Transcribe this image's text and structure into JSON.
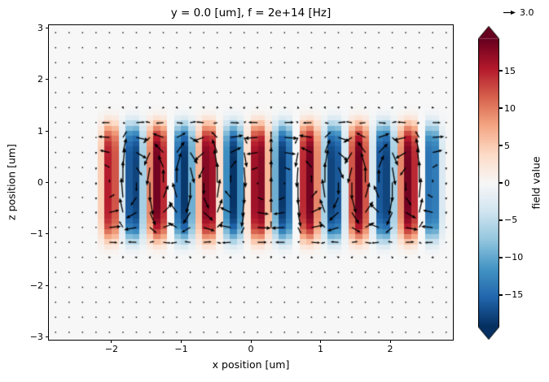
{
  "chart_data": {
    "type": "heatmap",
    "title": "y = 0.0 [um], f = 2e+14 [Hz]",
    "xlabel": "x position [um]",
    "ylabel": "z position [um]",
    "x_range": [
      -2.9,
      2.9
    ],
    "z_range": [
      -3.05,
      3.05
    ],
    "x_ticks": [
      -2,
      -1,
      0,
      1,
      2
    ],
    "z_ticks": [
      -3,
      -2,
      -1,
      0,
      1,
      2,
      3
    ],
    "grid": false,
    "colorbar": {
      "label": "field value",
      "ticks": [
        -15,
        -10,
        -5,
        0,
        5,
        10,
        15
      ],
      "vmin": -19.3,
      "vmax": 19.3,
      "extend": "both",
      "colormap": "RdBu_r",
      "colormap_colors": [
        "#053061",
        "#2166ac",
        "#4393c3",
        "#92c5de",
        "#d1e5f0",
        "#f7f7f7",
        "#fddbc7",
        "#f4a582",
        "#d6604d",
        "#b2182b",
        "#67001f"
      ]
    },
    "field_model": {
      "description": "Standing electromagnetic mode in the y=0 plane: field(x,z) = amplitude * sin(2*pi*(x - x_phase)/wavelength) * exp(-(|z|/z_halfwidth)^6), nonzero for x inside x_active; alternating red/blue vertical lobes confined to |z| < ~1.3 um",
      "amplitude": 19,
      "wavelength": 0.72,
      "x_phase": -0.07,
      "z_halfwidth": 1.12,
      "x_active": [
        -2.1,
        2.68
      ],
      "cell_size": 0.1
    },
    "quiver": {
      "key_value": 3.0,
      "key_label": "3.0",
      "grid_nx": 30,
      "grid_nz": 21,
      "u_amplitude": 4.8,
      "v_amplitude": 7.0,
      "z_loop_halfheight": 2.2,
      "z_halfwidth": 1.3,
      "arrow_color": "#000000",
      "pixels_per_unit": 4.0
    }
  }
}
